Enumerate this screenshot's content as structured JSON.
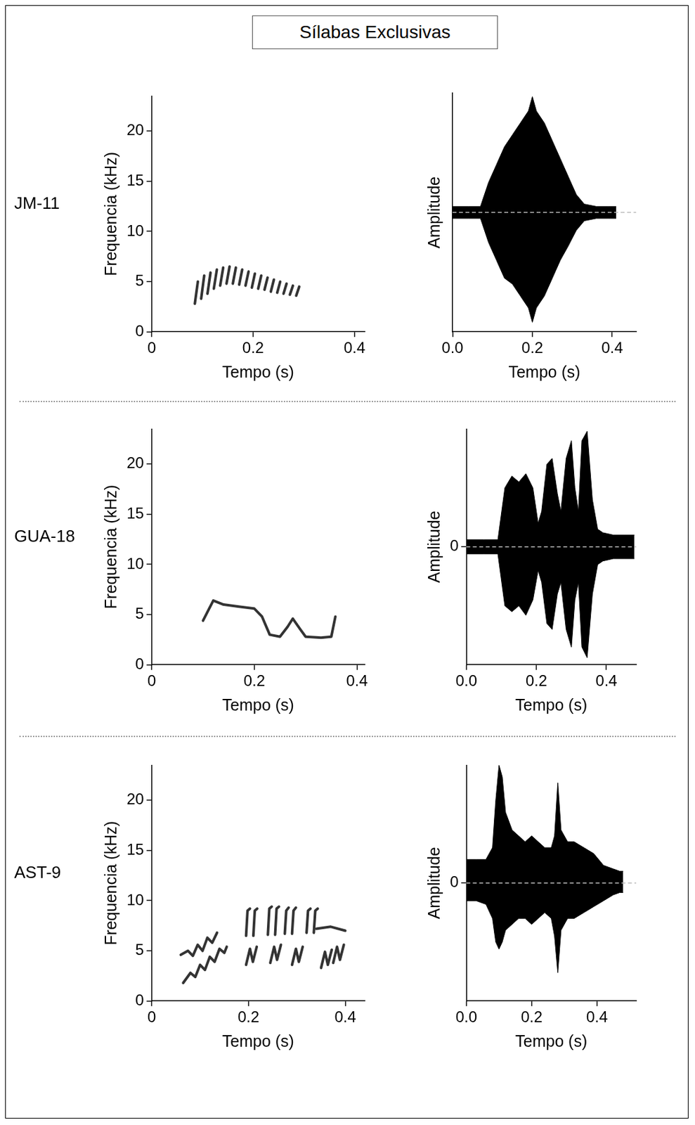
{
  "title": "Sílabas Exclusivas",
  "chart_data": [
    {
      "type": "spectrogram",
      "row_label": "JM-11",
      "x_label": "Tempo (s)",
      "y_label": "Frequencia (kHz)",
      "xlim": [
        0,
        0.42
      ],
      "xticks": [
        0,
        0.2,
        0.4
      ],
      "ylim": [
        0,
        23.5
      ],
      "yticks": [
        0,
        5,
        10,
        15,
        20
      ],
      "grid": false,
      "color": "#333333",
      "traces": [
        {
          "x": [
            0.085,
            0.091
          ],
          "y": [
            2.8,
            5.0
          ]
        },
        {
          "x": [
            0.0975,
            0.1035
          ],
          "y": [
            3.3,
            5.6
          ]
        },
        {
          "x": [
            0.11,
            0.116
          ],
          "y": [
            3.8,
            5.9
          ]
        },
        {
          "x": [
            0.1225,
            0.1285
          ],
          "y": [
            4.3,
            6.2
          ]
        },
        {
          "x": [
            0.135,
            0.141
          ],
          "y": [
            4.6,
            6.4
          ]
        },
        {
          "x": [
            0.1475,
            0.1535
          ],
          "y": [
            4.8,
            6.5
          ]
        },
        {
          "x": [
            0.16,
            0.166
          ],
          "y": [
            4.8,
            6.4
          ]
        },
        {
          "x": [
            0.1725,
            0.1785
          ],
          "y": [
            4.7,
            6.2
          ]
        },
        {
          "x": [
            0.185,
            0.191
          ],
          "y": [
            4.6,
            6.0
          ]
        },
        {
          "x": [
            0.1975,
            0.2035
          ],
          "y": [
            4.4,
            5.8
          ]
        },
        {
          "x": [
            0.21,
            0.216
          ],
          "y": [
            4.3,
            5.6
          ]
        },
        {
          "x": [
            0.2225,
            0.2285
          ],
          "y": [
            4.2,
            5.4
          ]
        },
        {
          "x": [
            0.235,
            0.241
          ],
          "y": [
            4.0,
            5.2
          ]
        },
        {
          "x": [
            0.2475,
            0.2535
          ],
          "y": [
            3.9,
            5.0
          ]
        },
        {
          "x": [
            0.26,
            0.266
          ],
          "y": [
            3.8,
            4.8
          ]
        },
        {
          "x": [
            0.2725,
            0.2785
          ],
          "y": [
            3.7,
            4.6
          ]
        },
        {
          "x": [
            0.285,
            0.291
          ],
          "y": [
            3.6,
            4.5
          ]
        }
      ]
    },
    {
      "type": "waveform",
      "x_label": "Tempo (s)",
      "y_label": "Amplitude",
      "xlim": [
        0,
        0.46
      ],
      "xticks": [
        {
          "value": 0,
          "label": "0.0"
        },
        0.2,
        0.4
      ],
      "ylim": [
        -1,
        1
      ],
      "tick_labels": "x",
      "grid": false,
      "color": "#000000",
      "baseline": 0,
      "x": [
        0,
        0.04,
        0.07,
        0.09,
        0.11,
        0.13,
        0.15,
        0.17,
        0.19,
        0.2,
        0.21,
        0.23,
        0.25,
        0.27,
        0.29,
        0.31,
        0.33,
        0.36,
        0.39,
        0.41
      ],
      "upper": [
        0.05,
        0.05,
        0.05,
        0.25,
        0.4,
        0.55,
        0.65,
        0.75,
        0.85,
        0.97,
        0.85,
        0.75,
        0.6,
        0.45,
        0.3,
        0.15,
        0.07,
        0.05,
        0.05,
        0.05
      ],
      "lower": [
        -0.05,
        -0.05,
        -0.05,
        -0.25,
        -0.4,
        -0.55,
        -0.6,
        -0.7,
        -0.8,
        -0.92,
        -0.8,
        -0.7,
        -0.55,
        -0.4,
        -0.28,
        -0.15,
        -0.07,
        -0.05,
        -0.05,
        -0.05
      ]
    },
    {
      "type": "spectrogram",
      "row_label": "GUA-18",
      "x_label": "Tempo (s)",
      "y_label": "Frequencia (kHz)",
      "xlim": [
        0,
        0.415
      ],
      "xticks": [
        0,
        0.2,
        0.4
      ],
      "ylim": [
        0,
        23.5
      ],
      "yticks": [
        0,
        5,
        10,
        15,
        20
      ],
      "grid": false,
      "color": "#333333",
      "traces": [
        {
          "x": [
            0.1,
            0.12,
            0.14,
            0.17,
            0.2,
            0.215,
            0.23,
            0.25,
            0.265,
            0.275,
            0.29,
            0.3,
            0.33,
            0.35,
            0.358
          ],
          "y": [
            4.4,
            6.4,
            6.0,
            5.8,
            5.6,
            4.8,
            3.0,
            2.8,
            3.8,
            4.6,
            3.5,
            2.8,
            2.7,
            2.8,
            4.8
          ]
        }
      ]
    },
    {
      "type": "waveform",
      "x_label": "Tempo (s)",
      "y_label": "Amplitude",
      "xlim": [
        0,
        0.485
      ],
      "xticks": [
        {
          "value": 0,
          "label": "0.0"
        },
        0.2,
        0.4
      ],
      "ylim": [
        -1,
        1
      ],
      "yticks": [
        0
      ],
      "grid": false,
      "color": "#000000",
      "baseline": 0,
      "x": [
        0,
        0.05,
        0.09,
        0.11,
        0.13,
        0.15,
        0.17,
        0.19,
        0.205,
        0.215,
        0.23,
        0.245,
        0.26,
        0.27,
        0.285,
        0.3,
        0.31,
        0.32,
        0.33,
        0.345,
        0.36,
        0.375,
        0.39,
        0.42,
        0.45,
        0.48
      ],
      "upper": [
        0.06,
        0.06,
        0.06,
        0.5,
        0.6,
        0.55,
        0.62,
        0.5,
        0.2,
        0.3,
        0.7,
        0.75,
        0.45,
        0.3,
        0.75,
        0.9,
        0.5,
        0.3,
        0.9,
        0.98,
        0.4,
        0.15,
        0.12,
        0.1,
        0.1,
        0.1
      ],
      "lower": [
        -0.06,
        -0.06,
        -0.06,
        -0.5,
        -0.55,
        -0.5,
        -0.58,
        -0.45,
        -0.2,
        -0.3,
        -0.65,
        -0.7,
        -0.4,
        -0.3,
        -0.7,
        -0.85,
        -0.45,
        -0.3,
        -0.85,
        -0.94,
        -0.4,
        -0.15,
        -0.12,
        -0.1,
        -0.1,
        -0.1
      ]
    },
    {
      "type": "spectrogram",
      "row_label": "AST-9",
      "x_label": "Tempo (s)",
      "y_label": "Frequencia (kHz)",
      "xlim": [
        0,
        0.44
      ],
      "xticks": [
        0,
        0.2,
        0.4
      ],
      "ylim": [
        0,
        23.5
      ],
      "yticks": [
        0,
        5,
        10,
        15,
        20
      ],
      "grid": false,
      "color": "#333333",
      "traces": [
        {
          "x": [
            0.065,
            0.08,
            0.09,
            0.1,
            0.11,
            0.12,
            0.13,
            0.14,
            0.15,
            0.155
          ],
          "y": [
            1.8,
            2.8,
            2.4,
            3.6,
            3.1,
            4.4,
            3.9,
            5.2,
            4.8,
            5.4
          ]
        },
        {
          "x": [
            0.06,
            0.075,
            0.085,
            0.095,
            0.105,
            0.115,
            0.125,
            0.135
          ],
          "y": [
            4.6,
            5.0,
            4.5,
            5.6,
            5.0,
            6.3,
            5.8,
            6.8
          ]
        },
        {
          "x": [
            0.195,
            0.203,
            0.209,
            0.217
          ],
          "y": [
            3.6,
            5.2,
            3.9,
            5.4
          ]
        },
        {
          "x": [
            0.245,
            0.253,
            0.259,
            0.267
          ],
          "y": [
            3.8,
            5.4,
            4.1,
            5.6
          ]
        },
        {
          "x": [
            0.29,
            0.298,
            0.304,
            0.312
          ],
          "y": [
            3.6,
            5.2,
            3.9,
            5.4
          ]
        },
        {
          "x": [
            0.35,
            0.358,
            0.364,
            0.372
          ],
          "y": [
            3.3,
            4.9,
            3.6,
            5.1
          ]
        },
        {
          "x": [
            0.375,
            0.383,
            0.389,
            0.397
          ],
          "y": [
            3.8,
            5.4,
            4.1,
            5.6
          ]
        },
        {
          "x": [
            0.195,
            0.198,
            0.203
          ],
          "y": [
            6.5,
            9.0,
            9.2
          ]
        },
        {
          "x": [
            0.21,
            0.213,
            0.218
          ],
          "y": [
            6.5,
            9.0,
            9.2
          ]
        },
        {
          "x": [
            0.24,
            0.243,
            0.248
          ],
          "y": [
            6.6,
            9.2,
            9.4
          ]
        },
        {
          "x": [
            0.255,
            0.258,
            0.263
          ],
          "y": [
            6.6,
            9.2,
            9.4
          ]
        },
        {
          "x": [
            0.275,
            0.278,
            0.283
          ],
          "y": [
            6.7,
            9.0,
            9.3
          ]
        },
        {
          "x": [
            0.29,
            0.293,
            0.298
          ],
          "y": [
            6.7,
            9.0,
            9.3
          ]
        },
        {
          "x": [
            0.32,
            0.323,
            0.328
          ],
          "y": [
            6.8,
            9.0,
            9.2
          ]
        },
        {
          "x": [
            0.335,
            0.338,
            0.343
          ],
          "y": [
            6.8,
            9.0,
            9.2
          ]
        },
        {
          "x": [
            0.34,
            0.37,
            0.4
          ],
          "y": [
            7.2,
            7.4,
            7.0
          ]
        }
      ]
    },
    {
      "type": "waveform",
      "x_label": "Tempo (s)",
      "y_label": "Amplitude",
      "xlim": [
        0,
        0.52
      ],
      "xticks": [
        {
          "value": 0,
          "label": "0.0"
        },
        0.2,
        0.4
      ],
      "ylim": [
        -1,
        1
      ],
      "yticks": [
        0
      ],
      "grid": false,
      "color": "#000000",
      "baseline": 0,
      "x": [
        0,
        0.03,
        0.06,
        0.08,
        0.09,
        0.1,
        0.11,
        0.12,
        0.14,
        0.16,
        0.18,
        0.2,
        0.22,
        0.24,
        0.26,
        0.27,
        0.28,
        0.29,
        0.31,
        0.33,
        0.36,
        0.39,
        0.42,
        0.45,
        0.47,
        0.48
      ],
      "upper": [
        0.2,
        0.2,
        0.2,
        0.3,
        0.7,
        1.0,
        0.9,
        0.6,
        0.45,
        0.4,
        0.35,
        0.4,
        0.35,
        0.3,
        0.3,
        0.4,
        0.85,
        0.45,
        0.35,
        0.35,
        0.3,
        0.25,
        0.15,
        0.12,
        0.1,
        0.1
      ],
      "lower": [
        -0.15,
        -0.15,
        -0.18,
        -0.3,
        -0.5,
        -0.56,
        -0.5,
        -0.4,
        -0.35,
        -0.3,
        -0.3,
        -0.35,
        -0.3,
        -0.25,
        -0.3,
        -0.45,
        -0.76,
        -0.4,
        -0.3,
        -0.3,
        -0.25,
        -0.2,
        -0.15,
        -0.1,
        -0.08,
        -0.08
      ]
    }
  ]
}
